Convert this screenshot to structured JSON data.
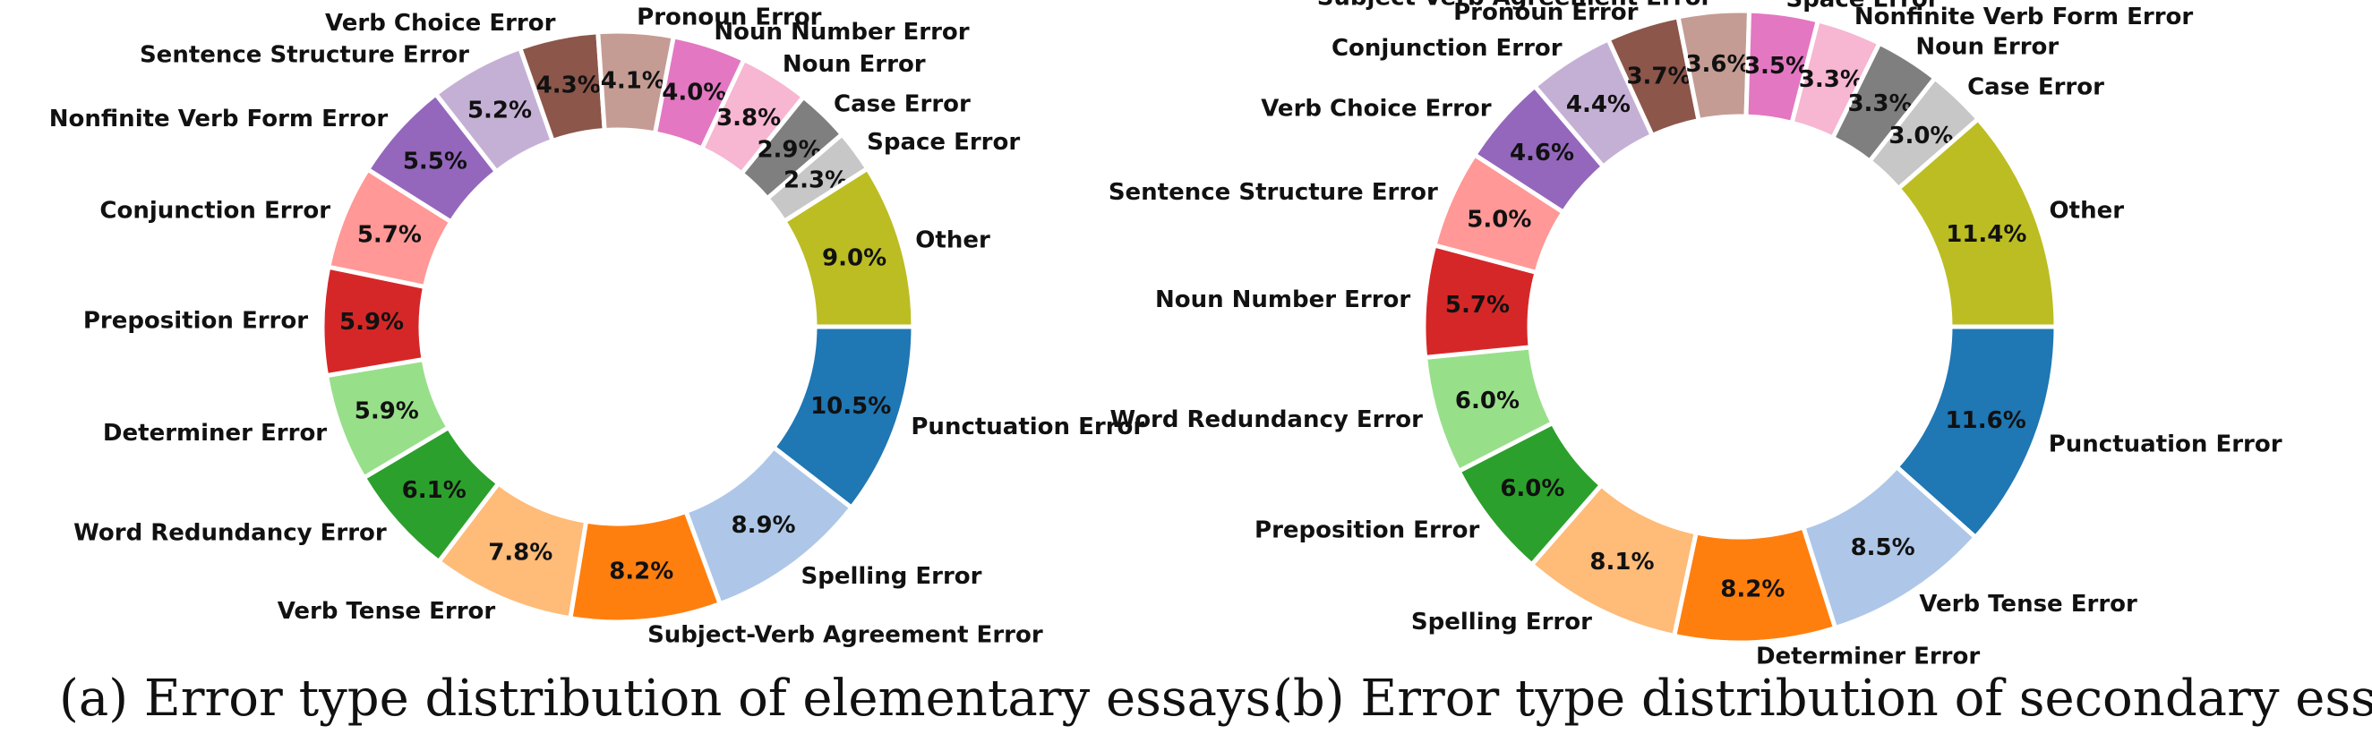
{
  "captions": {
    "a": "(a) Error type distribution of elementary essays.",
    "b": "(b) Error type distribution of secondary essays."
  },
  "chart_data": [
    {
      "type": "pie",
      "variant": "donut",
      "start_angle_deg": 0,
      "direction": "clockwise",
      "slices": [
        {
          "label": "Punctuation Error",
          "value": 10.5,
          "color": "#1f77b4"
        },
        {
          "label": "Spelling Error",
          "value": 8.9,
          "color": "#aec7e8"
        },
        {
          "label": "Subject-Verb Agreement Error",
          "value": 8.2,
          "color": "#ff7f0e"
        },
        {
          "label": "Verb Tense Error",
          "value": 7.8,
          "color": "#ffbb78"
        },
        {
          "label": "Word Redundancy Error",
          "value": 6.1,
          "color": "#2ca02c"
        },
        {
          "label": "Determiner Error",
          "value": 5.9,
          "color": "#98df8a"
        },
        {
          "label": "Preposition Error",
          "value": 5.9,
          "color": "#d62728"
        },
        {
          "label": "Conjunction Error",
          "value": 5.7,
          "color": "#ff9896"
        },
        {
          "label": "Nonfinite Verb Form Error",
          "value": 5.5,
          "color": "#9467bd"
        },
        {
          "label": "Sentence Structure Error",
          "value": 5.2,
          "color": "#c5b0d5"
        },
        {
          "label": "Verb Choice Error",
          "value": 4.3,
          "color": "#8c564b"
        },
        {
          "label": "Pronoun Error",
          "value": 4.1,
          "color": "#c49c94"
        },
        {
          "label": "Noun Number Error",
          "value": 4.0,
          "color": "#e377c2"
        },
        {
          "label": "Noun Error",
          "value": 3.8,
          "color": "#f7b6d2"
        },
        {
          "label": "Case Error",
          "value": 2.9,
          "color": "#7f7f7f"
        },
        {
          "label": "Space Error",
          "value": 2.3,
          "color": "#c7c7c7"
        },
        {
          "label": "Other",
          "value": 9.0,
          "color": "#bcbd22"
        }
      ]
    },
    {
      "type": "pie",
      "variant": "donut",
      "start_angle_deg": 0,
      "direction": "clockwise",
      "slices": [
        {
          "label": "Punctuation Error",
          "value": 11.6,
          "color": "#1f77b4"
        },
        {
          "label": "Verb Tense Error",
          "value": 8.5,
          "color": "#aec7e8"
        },
        {
          "label": "Determiner Error",
          "value": 8.2,
          "color": "#ff7f0e"
        },
        {
          "label": "Spelling Error",
          "value": 8.1,
          "color": "#ffbb78"
        },
        {
          "label": "Preposition Error",
          "value": 6.0,
          "color": "#2ca02c"
        },
        {
          "label": "Word Redundancy Error",
          "value": 6.0,
          "color": "#98df8a"
        },
        {
          "label": "Noun Number Error",
          "value": 5.7,
          "color": "#d62728"
        },
        {
          "label": "Sentence Structure Error",
          "value": 5.0,
          "color": "#ff9896"
        },
        {
          "label": "Verb Choice Error",
          "value": 4.6,
          "color": "#9467bd"
        },
        {
          "label": "Conjunction Error",
          "value": 4.4,
          "color": "#c5b0d5"
        },
        {
          "label": "Pronoun Error",
          "value": 3.7,
          "color": "#8c564b"
        },
        {
          "label": "Subject-Verb Agreement Error",
          "value": 3.6,
          "color": "#c49c94"
        },
        {
          "label": "Space Error",
          "value": 3.5,
          "color": "#e377c2"
        },
        {
          "label": "Nonfinite Verb Form Error",
          "value": 3.3,
          "color": "#f7b6d2"
        },
        {
          "label": "Noun Error",
          "value": 3.3,
          "color": "#7f7f7f"
        },
        {
          "label": "Case Error",
          "value": 3.0,
          "color": "#c7c7c7"
        },
        {
          "label": "Other",
          "value": 11.4,
          "color": "#bcbd22"
        }
      ]
    }
  ]
}
